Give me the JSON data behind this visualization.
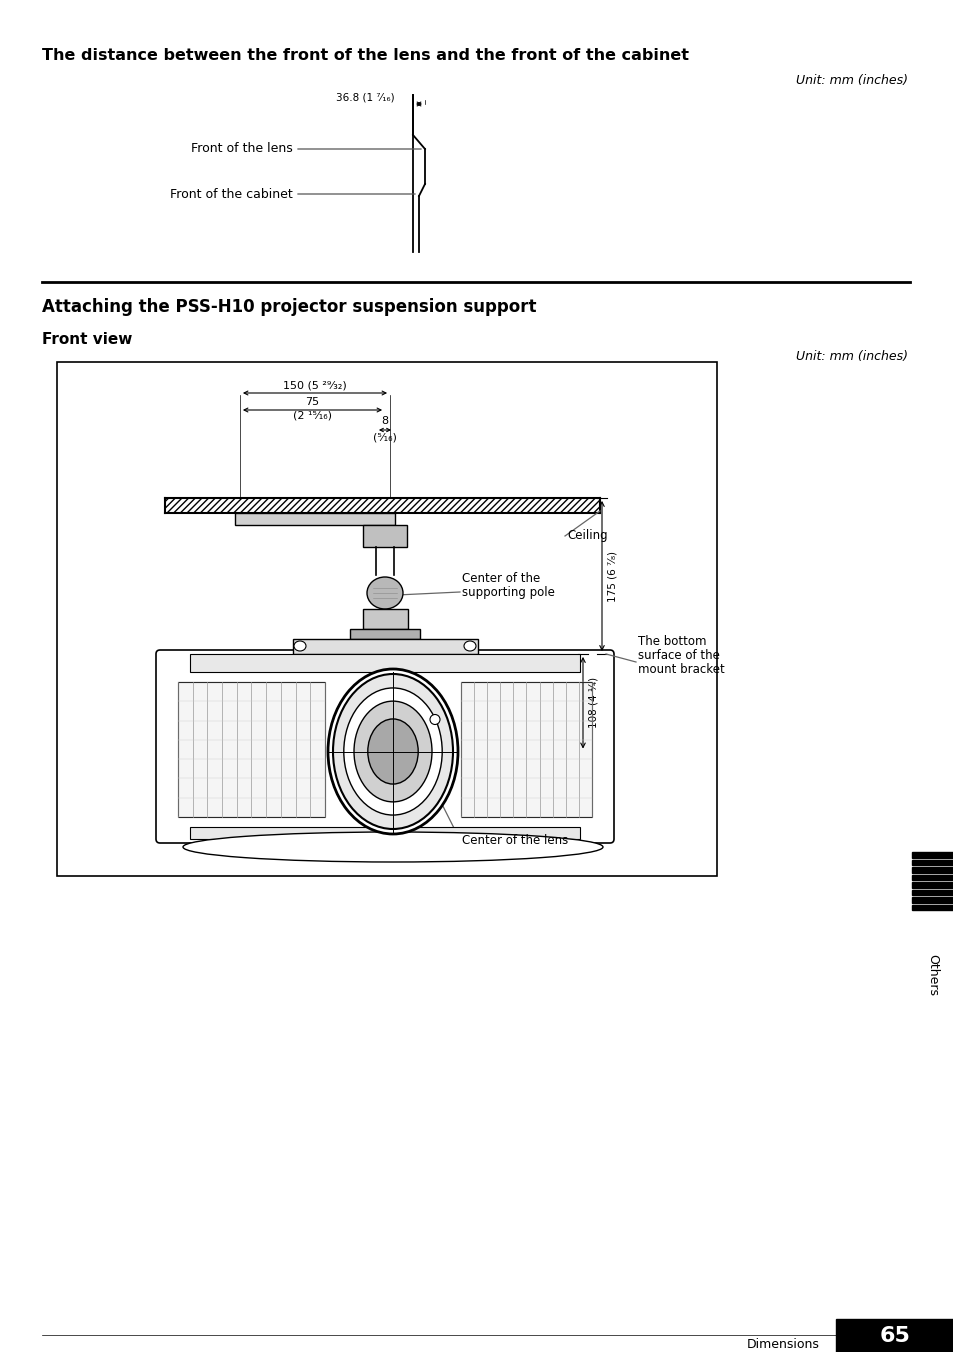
{
  "bg_color": "#ffffff",
  "page_width": 9.54,
  "page_height": 13.52,
  "section1_title": "The distance between the front of the lens and the front of the cabinet",
  "section1_unit": "Unit: mm (inches)",
  "section1_dim_label": "36.8 (1 ⁷⁄₁₆)",
  "section2_title": "Attaching the PSS-H10 projector suspension support",
  "section2_subtitle": "Front view",
  "section2_unit": "Unit: mm (inches)",
  "dim_150": "150 (5 ²⁹⁄₃₂)",
  "dim_75_line1": "75",
  "dim_75_line2": "(2 ¹⁵⁄₁₆)",
  "dim_8_line1": "8",
  "dim_8_line2": "(⁵⁄₁₆)",
  "dim_175": "175 (6 ⁷⁄₈)",
  "dim_108": "108 (4 ¹⁄₄)",
  "label_ceiling": "Ceiling",
  "label_center_pole_1": "Center of the",
  "label_center_pole_2": "supporting pole",
  "label_bottom_surface_1": "The bottom",
  "label_bottom_surface_2": "surface of the",
  "label_bottom_surface_3": "mount bracket",
  "label_center_lens": "Center of the lens",
  "label_front_lens": "Front of the lens",
  "label_front_cabinet": "Front of the cabinet",
  "sidebar_text": "Others",
  "footer_text": "Dimensions",
  "page_number": "65"
}
